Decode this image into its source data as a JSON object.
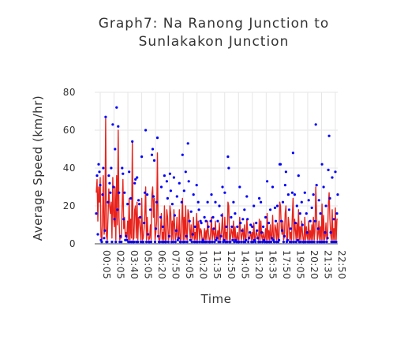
{
  "chart_data": {
    "type": "scatter+line",
    "title_lines": [
      "Graph7: Na Ranong Junction to",
      "Sunlakakon Junction"
    ],
    "xlabel": "Time",
    "ylabel": "Average Speed (km/hr)",
    "ylim": [
      0,
      80
    ],
    "yticks": [
      0,
      20,
      40,
      60,
      80
    ],
    "xticks": [
      "00:05",
      "02:05",
      "03:40",
      "05:05",
      "06:20",
      "07:50",
      "09:05",
      "10:20",
      "11:35",
      "12:50",
      "14:05",
      "15:20",
      "16:35",
      "17:50",
      "19:05",
      "20:20",
      "21:35",
      "22:50"
    ],
    "grid": true,
    "colors": {
      "points": "#0000ff",
      "line": "#e8231b"
    },
    "series": [
      {
        "style": "points",
        "values": [
          16,
          36,
          5,
          42,
          38,
          31,
          2,
          1,
          26,
          40,
          3,
          7,
          67,
          1,
          1,
          22,
          36,
          32,
          27,
          40,
          1,
          63,
          30,
          13,
          50,
          1,
          72,
          18,
          62,
          27,
          1,
          4,
          1,
          40,
          37,
          13,
          27,
          2,
          4,
          2,
          21,
          1,
          38,
          1,
          24,
          1,
          54,
          1,
          1,
          32,
          34,
          1,
          35,
          1,
          23,
          21,
          14,
          1,
          46,
          1,
          1,
          11,
          27,
          60,
          1,
          26,
          5,
          1,
          1,
          18,
          1,
          47,
          50,
          25,
          44,
          1,
          8,
          22,
          56,
          4,
          1,
          1,
          14,
          30,
          1,
          9,
          1,
          36,
          1,
          1,
          33,
          24,
          1,
          4,
          37,
          28,
          1,
          21,
          1,
          35,
          15,
          1,
          7,
          25,
          2,
          3,
          32,
          1,
          1,
          22,
          47,
          1,
          28,
          1,
          38,
          4,
          1,
          53,
          33,
          12,
          2,
          17,
          1,
          5,
          26,
          1,
          9,
          1,
          31,
          1,
          22,
          18,
          1,
          12,
          11,
          1,
          2,
          1,
          14,
          1,
          12,
          1,
          22,
          9,
          1,
          1,
          12,
          26,
          1,
          14,
          8,
          1,
          22,
          2,
          3,
          12,
          1,
          20,
          1,
          4,
          15,
          30,
          1,
          2,
          27,
          1,
          9,
          1,
          46,
          40,
          1,
          1,
          14,
          9,
          2,
          22,
          1,
          16,
          2,
          1,
          9,
          1,
          1,
          30,
          11,
          1,
          7,
          13,
          1,
          18,
          1,
          2,
          25,
          13,
          1,
          3,
          6,
          10,
          1,
          9,
          1,
          20,
          2,
          1,
          11,
          7,
          3,
          1,
          24,
          1,
          22,
          6,
          1,
          9,
          2,
          1,
          14,
          1,
          33,
          1,
          11,
          1,
          18,
          1,
          3,
          30,
          2,
          1,
          19,
          12,
          1,
          20,
          1,
          2,
          42,
          42,
          12,
          7,
          22,
          1,
          4,
          31,
          38,
          1,
          2,
          26,
          18,
          1,
          8,
          1,
          27,
          48,
          1,
          26,
          11,
          1,
          20,
          2,
          36,
          1,
          16,
          1,
          22,
          10,
          1,
          1,
          27,
          1,
          16,
          6,
          1,
          23,
          1,
          12,
          1,
          19,
          1,
          26,
          1,
          12,
          63,
          31,
          1,
          8,
          23,
          1,
          16,
          1,
          42,
          1,
          30,
          1,
          6,
          20,
          1,
          3,
          39,
          57,
          24,
          6,
          1,
          35,
          1,
          13,
          1,
          38,
          1,
          16,
          26
        ]
      },
      {
        "style": "line",
        "values": [
          27,
          34,
          12,
          30,
          22,
          35,
          4,
          2,
          12,
          36,
          5,
          8,
          66,
          4,
          2,
          14,
          29,
          20,
          16,
          22,
          3,
          35,
          15,
          9,
          30,
          2,
          36,
          10,
          60,
          14,
          2,
          4,
          3,
          20,
          34,
          8,
          14,
          4,
          6,
          3,
          12,
          2,
          24,
          2,
          13,
          3,
          54,
          2,
          3,
          18,
          20,
          3,
          22,
          2,
          14,
          12,
          8,
          2,
          24,
          2,
          3,
          8,
          16,
          30,
          2,
          14,
          5,
          2,
          3,
          10,
          2,
          26,
          30,
          14,
          24,
          2,
          6,
          12,
          48,
          4,
          2,
          2,
          8,
          16,
          2,
          6,
          2,
          20,
          2,
          2,
          18,
          14,
          2,
          4,
          20,
          16,
          2,
          12,
          2,
          18,
          9,
          2,
          5,
          14,
          2,
          3,
          18,
          2,
          2,
          12,
          24,
          2,
          14,
          2,
          20,
          4,
          2,
          18,
          16,
          8,
          3,
          10,
          2,
          4,
          14,
          2,
          6,
          2,
          16,
          2,
          12,
          10,
          2,
          8,
          7,
          2,
          3,
          2,
          8,
          2,
          7,
          2,
          12,
          6,
          2,
          2,
          7,
          14,
          2,
          8,
          5,
          2,
          12,
          3,
          3,
          7,
          2,
          11,
          2,
          4,
          8,
          16,
          2,
          3,
          14,
          2,
          6,
          2,
          22,
          20,
          2,
          2,
          8,
          6,
          3,
          12,
          2,
          9,
          3,
          2,
          6,
          2,
          2,
          14,
          7,
          2,
          5,
          8,
          2,
          10,
          2,
          3,
          13,
          8,
          2,
          3,
          4,
          6,
          2,
          6,
          2,
          11,
          3,
          2,
          7,
          5,
          3,
          2,
          13,
          2,
          12,
          4,
          2,
          6,
          3,
          2,
          8,
          2,
          16,
          2,
          7,
          2,
          10,
          2,
          3,
          15,
          3,
          2,
          10,
          8,
          2,
          11,
          2,
          3,
          22,
          20,
          8,
          5,
          12,
          2,
          4,
          16,
          20,
          2,
          3,
          14,
          10,
          2,
          6,
          2,
          14,
          24,
          2,
          13,
          7,
          2,
          11,
          3,
          18,
          2,
          9,
          2,
          12,
          6,
          2,
          2,
          14,
          2,
          9,
          4,
          2,
          12,
          2,
          7,
          2,
          10,
          2,
          14,
          2,
          7,
          30,
          16,
          2,
          5,
          12,
          2,
          9,
          2,
          21,
          2,
          15,
          2,
          4,
          11,
          2,
          3,
          20,
          27,
          13,
          5,
          2,
          18,
          2,
          8,
          2,
          19,
          2,
          13,
          13
        ]
      }
    ]
  }
}
